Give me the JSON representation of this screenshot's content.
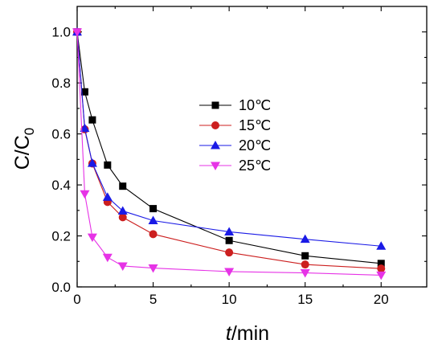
{
  "chart_data": {
    "type": "line",
    "title": "",
    "xlabel": {
      "italic": "t",
      "rest": "/min"
    },
    "ylabel": {
      "main": "C/C",
      "sub": "0"
    },
    "xlim": [
      0,
      23
    ],
    "ylim": [
      0,
      1.1
    ],
    "xticks": [
      "0",
      "5",
      "10",
      "15",
      "20"
    ],
    "yticks": [
      "0.0",
      "0.2",
      "0.4",
      "0.6",
      "0.8",
      "1.0"
    ],
    "grid": false,
    "legend_position": "upper-right-center",
    "x": [
      0,
      0.5,
      1,
      2,
      3,
      5,
      10,
      15,
      20
    ],
    "series": [
      {
        "name": "10℃",
        "marker": "square",
        "color": "#000000",
        "values": [
          1.0,
          0.765,
          0.655,
          0.478,
          0.395,
          0.307,
          0.182,
          0.122,
          0.092
        ]
      },
      {
        "name": "15℃",
        "marker": "circle",
        "color": "#cc1f1f",
        "values": [
          1.0,
          0.618,
          0.484,
          0.333,
          0.273,
          0.207,
          0.135,
          0.088,
          0.072
        ]
      },
      {
        "name": "20℃",
        "marker": "triangle-up",
        "color": "#1a1ae6",
        "values": [
          1.0,
          0.622,
          0.485,
          0.352,
          0.298,
          0.26,
          0.216,
          0.187,
          0.16
        ]
      },
      {
        "name": "25℃",
        "marker": "triangle-down",
        "color": "#e633e6",
        "values": [
          1.0,
          0.365,
          0.195,
          0.116,
          0.082,
          0.074,
          0.06,
          0.055,
          0.046
        ]
      }
    ]
  }
}
